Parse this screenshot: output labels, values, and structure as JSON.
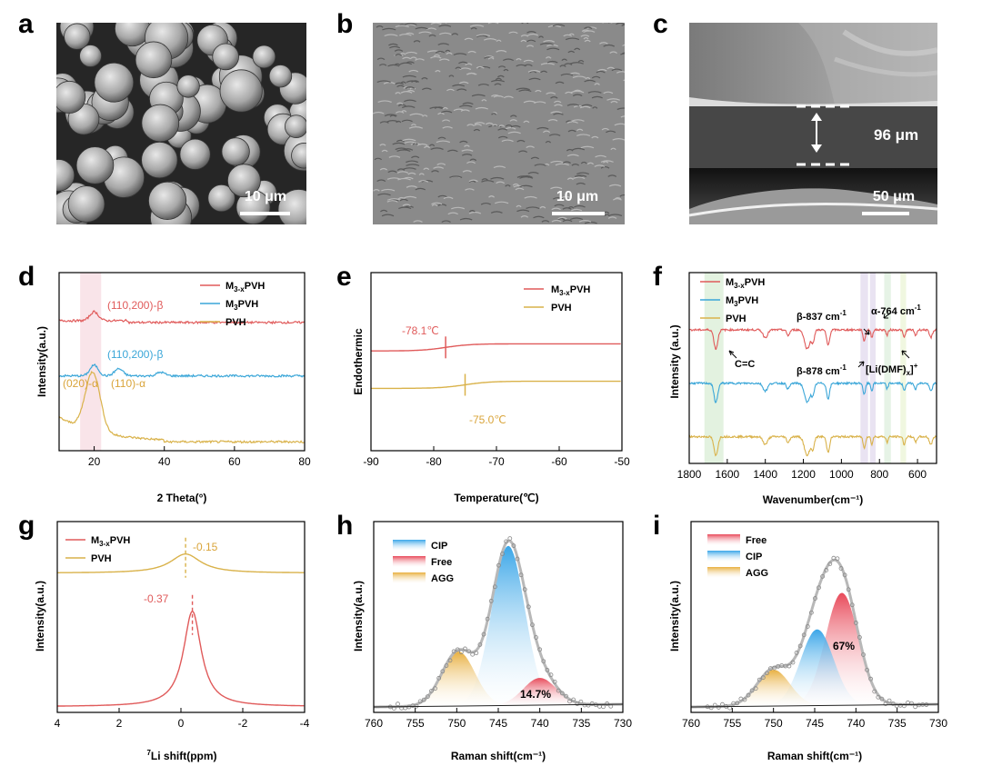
{
  "panel_labels": [
    "a",
    "b",
    "c",
    "d",
    "e",
    "f",
    "g",
    "h",
    "i"
  ],
  "sem": {
    "a": {
      "scale": "10 μm"
    },
    "b": {
      "scale": "10 μm"
    },
    "c": {
      "thickness": "96 μm",
      "scale": "50 μm"
    }
  },
  "colors": {
    "m3x": "#e05a5a",
    "m3": "#3aa6d8",
    "pvh": "#d9b24a",
    "cip": "#3aa6e8",
    "free": "#e84a5a",
    "agg": "#e8b040",
    "fit": "#b8b8b8"
  },
  "legends": {
    "m3x_pre": "M",
    "m3x_sub": "3-x",
    "m3x_post": "PVH",
    "m3_pre": "M",
    "m3_sub": "3",
    "m3_post": "PVH",
    "pvh": "PVH",
    "cip": "CIP",
    "free": "Free",
    "agg": "AGG"
  },
  "chart_data": [
    {
      "panel": "d",
      "type": "line",
      "xlabel": "2 Theta(°)",
      "ylabel": "Intensity(a.u.)",
      "xlim": [
        10,
        80
      ],
      "xticks": [
        "20",
        "40",
        "60",
        "80"
      ],
      "series": [
        {
          "name": "M3-xPVH",
          "baseline": 0.72,
          "peaks": [
            [
              20,
              0.05
            ]
          ]
        },
        {
          "name": "M3PVH",
          "baseline": 0.42,
          "peaks": [
            [
              20,
              0.06
            ],
            [
              27,
              0.04
            ],
            [
              39,
              0.02
            ]
          ]
        },
        {
          "name": "PVH",
          "baseline": 0.05,
          "peaks": [
            [
              18.5,
              0.1
            ],
            [
              20,
              0.25
            ]
          ]
        }
      ],
      "annotations": [
        "(110,200)-β",
        "(110,200)-β",
        "(020)-α",
        "(110)-α"
      ]
    },
    {
      "panel": "e",
      "type": "line",
      "xlabel": "Temperature(℃)",
      "ylabel": "Endothermic",
      "xlim": [
        -90,
        -50
      ],
      "xticks": [
        "-90",
        "-80",
        "-70",
        "-60",
        "-50"
      ],
      "series": [
        {
          "name": "M3-xPVH",
          "tg": -78.1
        },
        {
          "name": "PVH",
          "tg": -75.0
        }
      ],
      "annotations": [
        "-78.1℃",
        "-75.0℃"
      ]
    },
    {
      "panel": "f",
      "type": "line",
      "xlabel": "Wavenumber(cm⁻¹)",
      "ylabel": "Intensity (a.u.)",
      "xlim": [
        1800,
        500
      ],
      "xticks": [
        "1800",
        "1600",
        "1400",
        "1200",
        "1000",
        "800",
        "600"
      ],
      "series": [
        {
          "name": "M3-xPVH"
        },
        {
          "name": "M3PVH"
        },
        {
          "name": "PVH"
        }
      ],
      "annotations": {
        "b837": "β-837 cm",
        "a764": "α-764 cm",
        "cc": "C=C",
        "b878": "β-878 cm",
        "li_pre": "[Li(DMF)",
        "li_sub": "x",
        "li_post": "]",
        "li_sup": "+",
        "cm_sup": "-1"
      }
    },
    {
      "panel": "g",
      "type": "line",
      "xlabel_sup": "7",
      "xlabel": "Li shift(ppm)",
      "ylabel": "Intensity(a.u.)",
      "xlim": [
        4,
        -4
      ],
      "xticks": [
        "4",
        "2",
        "0",
        "-2",
        "-4"
      ],
      "series": [
        {
          "name": "M3-xPVH",
          "peak": -0.37
        },
        {
          "name": "PVH",
          "peak": -0.15
        }
      ],
      "annotations": [
        "-0.37",
        "-0.15"
      ]
    },
    {
      "panel": "h",
      "type": "area",
      "xlabel": "Raman shift(cm⁻¹)",
      "ylabel": "Intensity(a.u.)",
      "xlim": [
        760,
        730
      ],
      "xticks": [
        "760",
        "755",
        "750",
        "745",
        "740",
        "735",
        "730"
      ],
      "series": [
        {
          "name": "CIP",
          "center": 743.8,
          "height": 0.88
        },
        {
          "name": "Free",
          "center": 740.0,
          "height": 0.15
        },
        {
          "name": "AGG",
          "center": 749.8,
          "height": 0.3
        }
      ],
      "annotations": [
        "14.7%"
      ]
    },
    {
      "panel": "i",
      "type": "area",
      "xlabel": "Raman shift(cm⁻¹)",
      "ylabel": "Intensity(a.u.)",
      "xlim": [
        760,
        730
      ],
      "xticks": [
        "760",
        "755",
        "750",
        "745",
        "740",
        "735",
        "730"
      ],
      "series": [
        {
          "name": "Free",
          "center": 741.7,
          "height": 0.62
        },
        {
          "name": "CIP",
          "center": 744.7,
          "height": 0.42
        },
        {
          "name": "AGG",
          "center": 750.0,
          "height": 0.2
        }
      ],
      "annotations": [
        "67%"
      ]
    }
  ]
}
